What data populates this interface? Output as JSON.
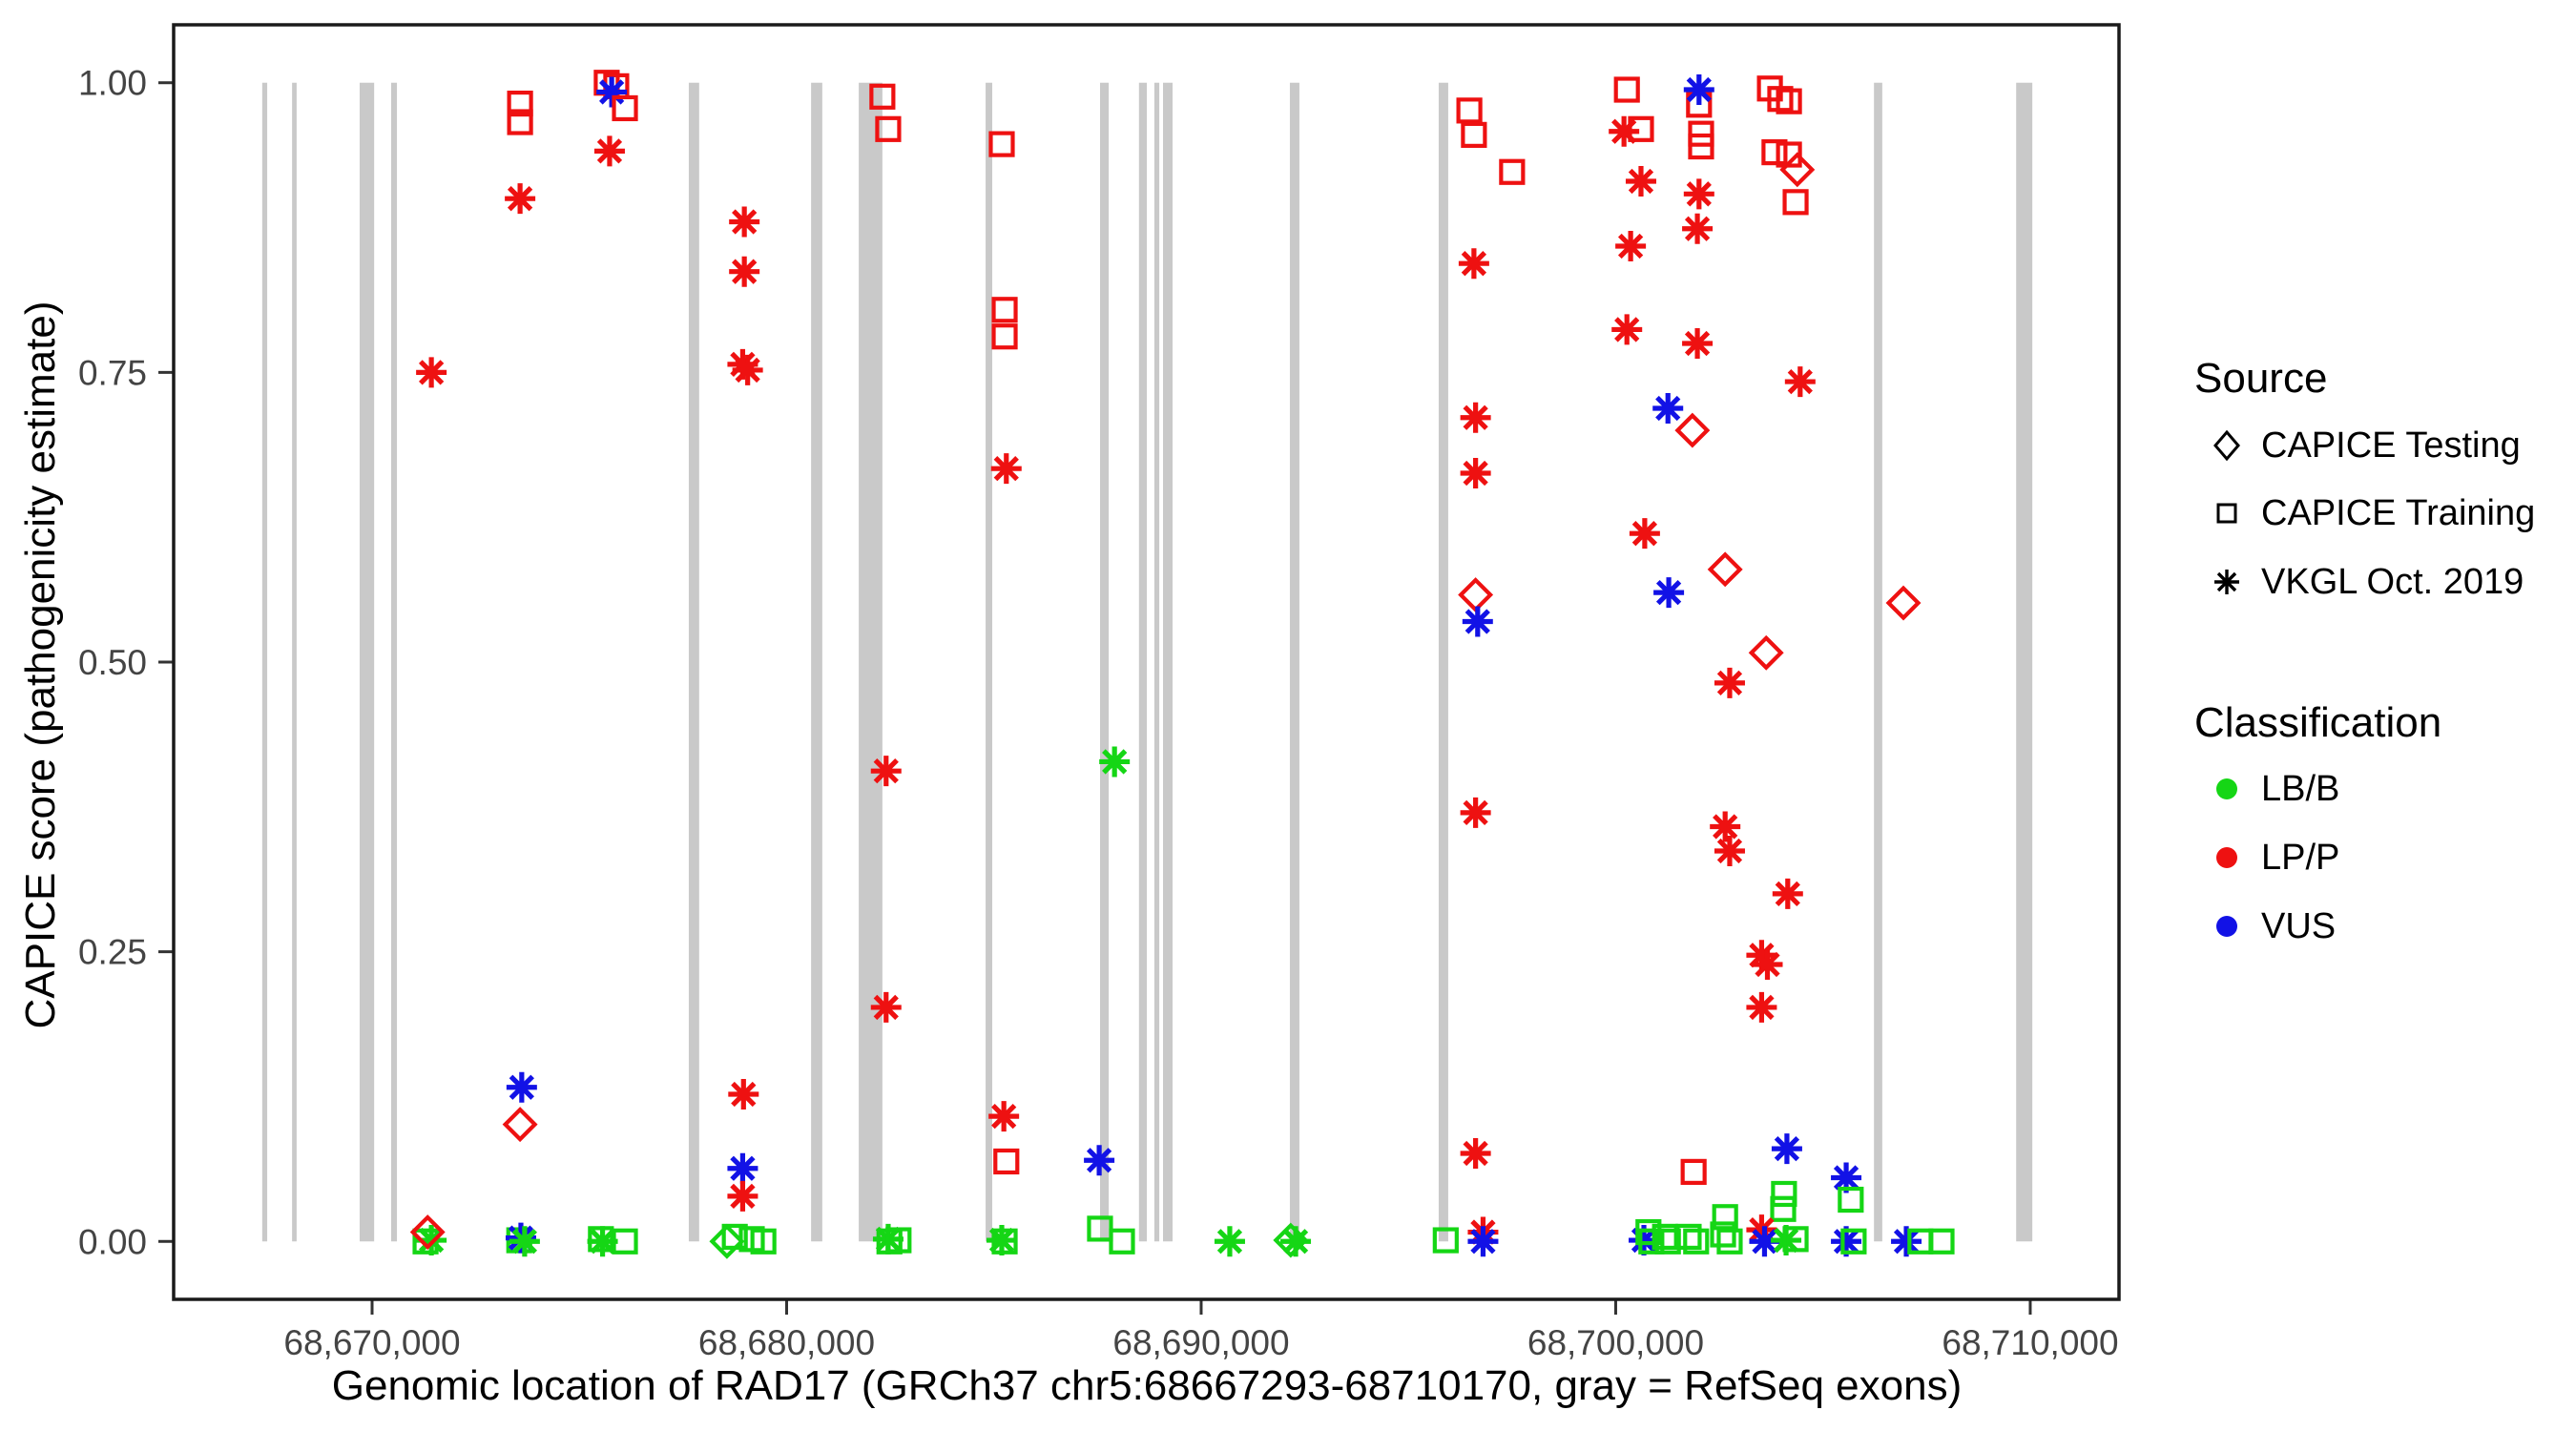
{
  "chart_data": {
    "type": "scatter",
    "title": "",
    "xlabel": "Genomic location of RAD17 (GRCh37 chr5:68667293-68710170, gray = RefSeq exons)",
    "ylabel": "CAPICE score (pathogenicity estimate)",
    "x_ticks": [
      {
        "bp": 68670000,
        "label": "68,670,000"
      },
      {
        "bp": 68680000,
        "label": "68,680,000"
      },
      {
        "bp": 68690000,
        "label": "68,690,000"
      },
      {
        "bp": 68700000,
        "label": "68,700,000"
      },
      {
        "bp": 68710000,
        "label": "68,710,000"
      }
    ],
    "y_ticks": [
      {
        "value": 0.0,
        "label": "0.00"
      },
      {
        "value": 0.25,
        "label": "0.25"
      },
      {
        "value": 0.5,
        "label": "0.50"
      },
      {
        "value": 0.75,
        "label": "0.75"
      },
      {
        "value": 1.0,
        "label": "1.00"
      }
    ],
    "xlim_bp": [
      68665213,
      68712141
    ],
    "ylim": [
      -0.05,
      1.05
    ],
    "grid": "off",
    "legend_position": "right",
    "exon_color": "#c9c9c9",
    "exon_value_span": [
      0,
      1
    ],
    "exons_bp": [
      [
        68667350,
        68667470
      ],
      [
        68668070,
        68668180
      ],
      [
        68669700,
        68670050
      ],
      [
        68670460,
        68670600
      ],
      [
        68677640,
        68677890
      ],
      [
        68680590,
        68680860
      ],
      [
        68681740,
        68682310
      ],
      [
        68684800,
        68684960
      ],
      [
        68687560,
        68687770
      ],
      [
        68688500,
        68688690
      ],
      [
        68688870,
        68688990
      ],
      [
        68689080,
        68689310
      ],
      [
        68692140,
        68692370
      ],
      [
        68695730,
        68695960
      ],
      [
        68706230,
        68706430
      ],
      [
        68709660,
        68710050
      ]
    ],
    "shape_codes": {
      "D": "CAPICE Testing (open diamond)",
      "S": "CAPICE Training (open square)",
      "A": "VKGL Oct. 2019 (asterisk)"
    },
    "class_codes": {
      "B": "LB/B",
      "P": "LP/P",
      "V": "VUS"
    },
    "classification_colors": {
      "LB/B": "#15d615",
      "LP/P": "#ee1111",
      "VUS": "#1212e6"
    },
    "points_format": [
      "bp",
      "capice_score",
      "shape_code",
      "class_code"
    ],
    "points": [
      [
        68671290,
        0.0,
        "S",
        "B"
      ],
      [
        68671430,
        0.001,
        "A",
        "B"
      ],
      [
        68671340,
        0.008,
        "D",
        "P"
      ],
      [
        68671430,
        0.75,
        "A",
        "P"
      ],
      [
        68673570,
        0.982,
        "S",
        "P"
      ],
      [
        68673570,
        0.966,
        "S",
        "P"
      ],
      [
        68673570,
        0.9,
        "A",
        "P"
      ],
      [
        68673610,
        0.133,
        "A",
        "V"
      ],
      [
        68673570,
        0.101,
        "D",
        "P"
      ],
      [
        68673550,
        0.001,
        "S",
        "B"
      ],
      [
        68673590,
        0.003,
        "A",
        "V"
      ],
      [
        68673680,
        0.0,
        "A",
        "B"
      ],
      [
        68675660,
        1.0,
        "S",
        "P"
      ],
      [
        68675890,
        0.997,
        "S",
        "P"
      ],
      [
        68675780,
        0.992,
        "A",
        "V"
      ],
      [
        68676100,
        0.978,
        "S",
        "P"
      ],
      [
        68675730,
        0.941,
        "A",
        "P"
      ],
      [
        68675520,
        0.002,
        "S",
        "B"
      ],
      [
        68675560,
        0.0,
        "A",
        "B"
      ],
      [
        68676100,
        0.0,
        "S",
        "B"
      ],
      [
        68678980,
        0.88,
        "A",
        "P"
      ],
      [
        68678980,
        0.837,
        "A",
        "P"
      ],
      [
        68678940,
        0.757,
        "A",
        "P"
      ],
      [
        68679060,
        0.752,
        "A",
        "P"
      ],
      [
        68678960,
        0.127,
        "A",
        "P"
      ],
      [
        68678940,
        0.063,
        "A",
        "V"
      ],
      [
        68678940,
        0.039,
        "A",
        "P"
      ],
      [
        68678560,
        0.0,
        "D",
        "B"
      ],
      [
        68678750,
        0.004,
        "S",
        "B"
      ],
      [
        68679160,
        0.002,
        "S",
        "B"
      ],
      [
        68679440,
        0.0,
        "S",
        "B"
      ],
      [
        68682310,
        0.988,
        "S",
        "P"
      ],
      [
        68682450,
        0.96,
        "S",
        "P"
      ],
      [
        68682400,
        0.406,
        "A",
        "P"
      ],
      [
        68682400,
        0.202,
        "A",
        "P"
      ],
      [
        68682480,
        0.0,
        "S",
        "B"
      ],
      [
        68682450,
        0.002,
        "A",
        "B"
      ],
      [
        68682700,
        0.001,
        "S",
        "B"
      ],
      [
        68685190,
        0.947,
        "S",
        "P"
      ],
      [
        68685260,
        0.804,
        "S",
        "P"
      ],
      [
        68685260,
        0.781,
        "S",
        "P"
      ],
      [
        68685300,
        0.667,
        "A",
        "P"
      ],
      [
        68685240,
        0.108,
        "A",
        "P"
      ],
      [
        68685300,
        0.069,
        "S",
        "P"
      ],
      [
        68685190,
        0.001,
        "A",
        "B"
      ],
      [
        68685260,
        0.0,
        "S",
        "B"
      ],
      [
        68687540,
        0.07,
        "A",
        "V"
      ],
      [
        68687910,
        0.414,
        "A",
        "B"
      ],
      [
        68687560,
        0.011,
        "S",
        "B"
      ],
      [
        68688090,
        0.0,
        "S",
        "B"
      ],
      [
        68690690,
        0.0,
        "A",
        "B"
      ],
      [
        68692160,
        0.001,
        "D",
        "B"
      ],
      [
        68692280,
        0.0,
        "A",
        "B"
      ],
      [
        68695900,
        0.001,
        "S",
        "B"
      ],
      [
        68696470,
        0.976,
        "S",
        "P"
      ],
      [
        68696580,
        0.955,
        "S",
        "P"
      ],
      [
        68696580,
        0.844,
        "A",
        "P"
      ],
      [
        68696620,
        0.711,
        "A",
        "P"
      ],
      [
        68696620,
        0.663,
        "A",
        "P"
      ],
      [
        68696620,
        0.558,
        "D",
        "P"
      ],
      [
        68696670,
        0.535,
        "A",
        "V"
      ],
      [
        68696620,
        0.37,
        "A",
        "P"
      ],
      [
        68696620,
        0.076,
        "A",
        "P"
      ],
      [
        68696800,
        0.008,
        "A",
        "P"
      ],
      [
        68696800,
        0.0,
        "A",
        "V"
      ],
      [
        68697500,
        0.923,
        "S",
        "P"
      ],
      [
        68700270,
        0.994,
        "S",
        "P"
      ],
      [
        68700200,
        0.958,
        "A",
        "P"
      ],
      [
        68700610,
        0.96,
        "S",
        "P"
      ],
      [
        68700610,
        0.915,
        "A",
        "P"
      ],
      [
        68700360,
        0.859,
        "A",
        "P"
      ],
      [
        68700270,
        0.787,
        "A",
        "P"
      ],
      [
        68700700,
        0.611,
        "A",
        "P"
      ],
      [
        68700680,
        0.001,
        "A",
        "V"
      ],
      [
        68700790,
        0.008,
        "S",
        "B"
      ],
      [
        68700860,
        0.0,
        "S",
        "B"
      ],
      [
        68702010,
        0.981,
        "S",
        "P"
      ],
      [
        68702010,
        0.994,
        "A",
        "V"
      ],
      [
        68702060,
        0.956,
        "S",
        "P"
      ],
      [
        68702060,
        0.945,
        "S",
        "P"
      ],
      [
        68702010,
        0.904,
        "A",
        "P"
      ],
      [
        68701970,
        0.874,
        "A",
        "P"
      ],
      [
        68701970,
        0.775,
        "A",
        "P"
      ],
      [
        68701260,
        0.719,
        "A",
        "V"
      ],
      [
        68701850,
        0.7,
        "D",
        "P"
      ],
      [
        68701280,
        0.56,
        "A",
        "V"
      ],
      [
        68701880,
        0.06,
        "S",
        "P"
      ],
      [
        68701190,
        0.004,
        "S",
        "B"
      ],
      [
        68701260,
        0.0,
        "S",
        "B"
      ],
      [
        68701760,
        0.004,
        "S",
        "B"
      ],
      [
        68701940,
        0.0,
        "S",
        "B"
      ],
      [
        68702640,
        0.58,
        "D",
        "P"
      ],
      [
        68702750,
        0.482,
        "A",
        "P"
      ],
      [
        68702640,
        0.358,
        "A",
        "P"
      ],
      [
        68702750,
        0.337,
        "A",
        "P"
      ],
      [
        68702640,
        0.021,
        "S",
        "B"
      ],
      [
        68702590,
        0.006,
        "S",
        "B"
      ],
      [
        68702750,
        0.0,
        "S",
        "B"
      ],
      [
        68703630,
        0.508,
        "D",
        "P"
      ],
      [
        68704150,
        0.3,
        "A",
        "P"
      ],
      [
        68703520,
        0.247,
        "A",
        "P"
      ],
      [
        68703660,
        0.239,
        "A",
        "P"
      ],
      [
        68703520,
        0.202,
        "A",
        "P"
      ],
      [
        68703720,
        0.995,
        "S",
        "P"
      ],
      [
        68703970,
        0.986,
        "S",
        "P"
      ],
      [
        68704180,
        0.984,
        "S",
        "P"
      ],
      [
        68703830,
        0.94,
        "S",
        "P"
      ],
      [
        68704180,
        0.938,
        "S",
        "P"
      ],
      [
        68704380,
        0.925,
        "D",
        "P"
      ],
      [
        68704340,
        0.897,
        "S",
        "P"
      ],
      [
        68704450,
        0.742,
        "A",
        "P"
      ],
      [
        68704130,
        0.08,
        "A",
        "V"
      ],
      [
        68704060,
        0.041,
        "S",
        "B"
      ],
      [
        68704040,
        0.028,
        "S",
        "B"
      ],
      [
        68703520,
        0.01,
        "A",
        "P"
      ],
      [
        68703590,
        0.0,
        "A",
        "V"
      ],
      [
        68704110,
        0.001,
        "A",
        "B"
      ],
      [
        68704340,
        0.002,
        "S",
        "B"
      ],
      [
        68705560,
        0.055,
        "A",
        "V"
      ],
      [
        68705670,
        0.036,
        "S",
        "B"
      ],
      [
        68705560,
        0.0,
        "A",
        "V"
      ],
      [
        68705740,
        0.0,
        "S",
        "B"
      ],
      [
        68706940,
        0.551,
        "D",
        "P"
      ],
      [
        68707010,
        0.0,
        "A",
        "V"
      ],
      [
        68707350,
        0.0,
        "S",
        "B"
      ],
      [
        68707860,
        0.0,
        "S",
        "B"
      ]
    ]
  },
  "legend": {
    "source": {
      "title": "Source",
      "items": [
        {
          "label": "CAPICE Testing",
          "symbol": "diamond"
        },
        {
          "label": "CAPICE Training",
          "symbol": "square"
        },
        {
          "label": "VKGL Oct. 2019",
          "symbol": "asterisk"
        }
      ]
    },
    "classification": {
      "title": "Classification",
      "items": [
        {
          "label": "LB/B",
          "color": "#15d615"
        },
        {
          "label": "LP/P",
          "color": "#ee1111"
        },
        {
          "label": "VUS",
          "color": "#1212e6"
        }
      ]
    }
  }
}
